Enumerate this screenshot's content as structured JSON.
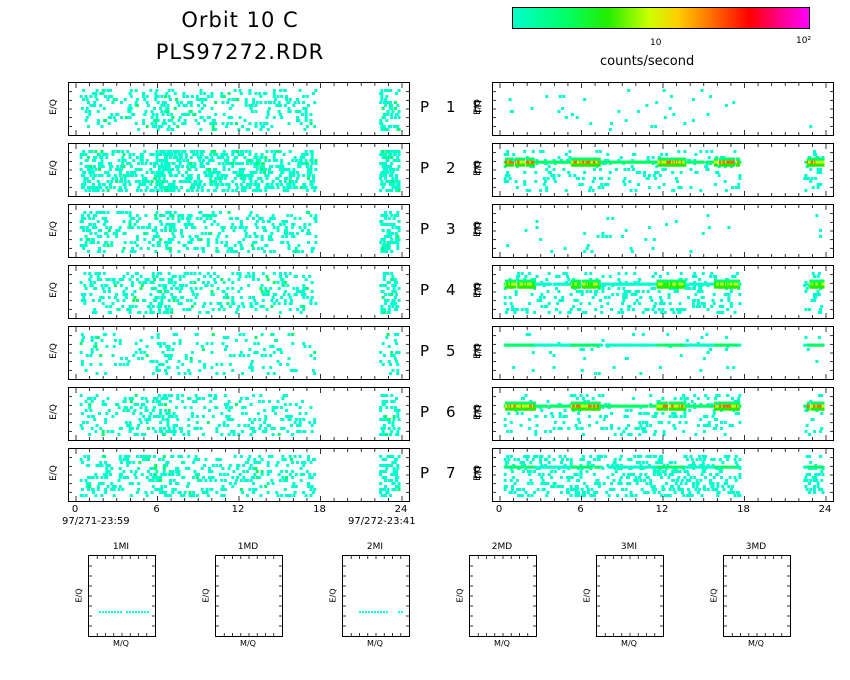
{
  "header": {
    "title_line1": "Orbit 10 C",
    "title_line2": "PLS97272.RDR"
  },
  "colorbar": {
    "tick_10": "10",
    "tick_100": "10²",
    "label": "counts/second",
    "colors": [
      "#00ffcc",
      "#00ff66",
      "#22ee00",
      "#ccff00",
      "#ffcc00",
      "#ff6600",
      "#ff0000",
      "#ff0088",
      "#ff00ff"
    ]
  },
  "chart_data": {
    "type": "heatmap",
    "x_ticks": [
      "0",
      "6",
      "12",
      "18",
      "24"
    ],
    "xlim": [
      0,
      24
    ],
    "ylabel": "E/Q",
    "start_time": "97/271-23:59",
    "end_time": "97/272-23:41",
    "rows": [
      {
        "label_left": "P",
        "num": "1",
        "label_right": "E",
        "p_density": 0.22,
        "e_density": 0.04,
        "e_band": "none",
        "p_seed": 11,
        "e_seed": 21
      },
      {
        "label_left": "P",
        "num": "2",
        "label_right": "E",
        "p_density": 0.55,
        "e_density": 0.25,
        "e_band": "strong",
        "p_seed": 12,
        "e_seed": 22
      },
      {
        "label_left": "P",
        "num": "3",
        "label_right": "E",
        "p_density": 0.3,
        "e_density": 0.03,
        "e_band": "none",
        "p_seed": 13,
        "e_seed": 23
      },
      {
        "label_left": "P",
        "num": "4",
        "label_right": "E",
        "p_density": 0.25,
        "e_density": 0.3,
        "e_band": "medium",
        "p_seed": 14,
        "e_seed": 24
      },
      {
        "label_left": "P",
        "num": "5",
        "label_right": "E",
        "p_density": 0.12,
        "e_density": 0.05,
        "e_band": "weak",
        "p_seed": 15,
        "e_seed": 25
      },
      {
        "label_left": "P",
        "num": "6",
        "label_right": "E",
        "p_density": 0.22,
        "e_density": 0.22,
        "e_band": "strong",
        "p_seed": 16,
        "e_seed": 26
      },
      {
        "label_left": "P",
        "num": "7",
        "label_right": "E",
        "p_density": 0.25,
        "e_density": 0.45,
        "e_band": "weak",
        "p_seed": 17,
        "e_seed": 27
      }
    ],
    "mini_panels": [
      {
        "title": "1MI",
        "xlabel": "M/Q",
        "ylabel": "E/Q",
        "has_line": true
      },
      {
        "title": "1MD",
        "xlabel": "M/Q",
        "ylabel": "E/Q",
        "has_line": false
      },
      {
        "title": "2MI",
        "xlabel": "M/Q",
        "ylabel": "E/Q",
        "has_line": true
      },
      {
        "title": "2MD",
        "xlabel": "M/Q",
        "ylabel": "E/Q",
        "has_line": false
      },
      {
        "title": "3MI",
        "xlabel": "M/Q",
        "ylabel": "E/Q",
        "has_line": false
      },
      {
        "title": "3MD",
        "xlabel": "M/Q",
        "ylabel": "E/Q",
        "has_line": false
      }
    ]
  }
}
